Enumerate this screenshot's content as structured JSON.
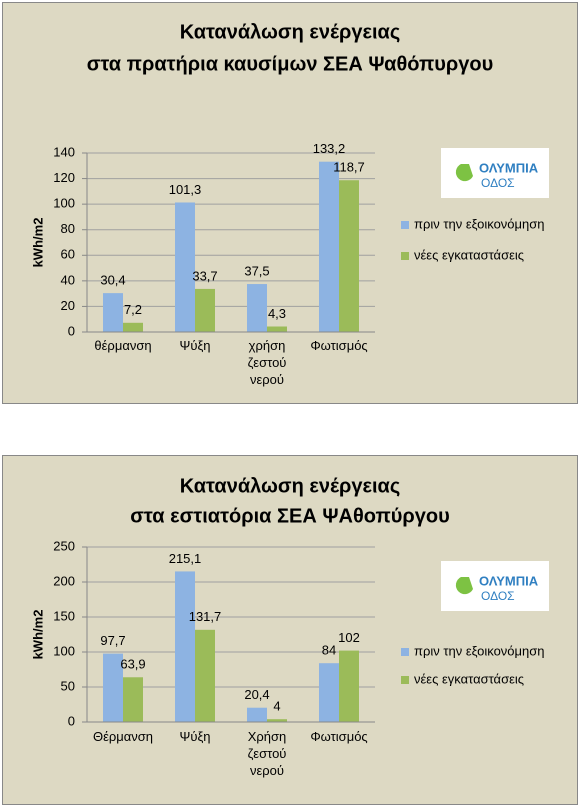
{
  "chart_data": [
    {
      "type": "bar",
      "title": [
        "Κατανάλωση ενέργειας",
        "στα πρατήρια καυσίμων ΣΕΑ Ψαθόπυργου"
      ],
      "y_label": "kWh/m2",
      "logo": [
        "ΟΛΥΜΠΙΑ",
        "ΟΔΟΣ"
      ],
      "categories": [
        "θέρμανση",
        "Ψύξη",
        "χρήση ζεστού νερού",
        "Φωτισμός"
      ],
      "series": [
        {
          "name": "πριν την εξοικονόμηση",
          "color": "#8db3e2",
          "values": [
            30.4,
            101.3,
            37.5,
            133.2
          ],
          "value_labels": [
            "30,4",
            "101,3",
            "37,5",
            "133,2"
          ]
        },
        {
          "name": "νέες εγκαταστάσεις",
          "color": "#9bbb59",
          "values": [
            7.2,
            33.7,
            4.3,
            118.7
          ],
          "value_labels": [
            "7,2",
            "33,7",
            "4,3",
            "118,7"
          ]
        }
      ],
      "ylim": [
        0,
        140
      ],
      "yticks": [
        0,
        20,
        40,
        60,
        80,
        100,
        120,
        140
      ],
      "grid": true,
      "legend": "right"
    },
    {
      "type": "bar",
      "title": [
        "Κατανάλωση ενέργειας",
        "στα εστιατόρια ΣΕΑ ΨΑθοπύργου"
      ],
      "y_label": "kWh/m2",
      "logo": [
        "ΟΛΥΜΠΙΑ",
        "ΟΔΟΣ"
      ],
      "categories": [
        "Θέρμανση",
        "Ψύξη",
        "Χρήση ζεστού νερού",
        "Φωτισμός"
      ],
      "series": [
        {
          "name": "πριν την εξοικονόμηση",
          "color": "#8db3e2",
          "values": [
            97.7,
            215.1,
            20.4,
            84
          ],
          "value_labels": [
            "97,7",
            "215,1",
            "20,4",
            "84"
          ]
        },
        {
          "name": "νέες εγκαταστάσεις",
          "color": "#9bbb59",
          "values": [
            63.9,
            131.7,
            4,
            102
          ],
          "value_labels": [
            "63,9",
            "131,7",
            "4",
            "102"
          ]
        }
      ],
      "ylim": [
        0,
        250
      ],
      "yticks": [
        0,
        50,
        100,
        150,
        200,
        250
      ],
      "grid": true,
      "legend": "right"
    }
  ]
}
